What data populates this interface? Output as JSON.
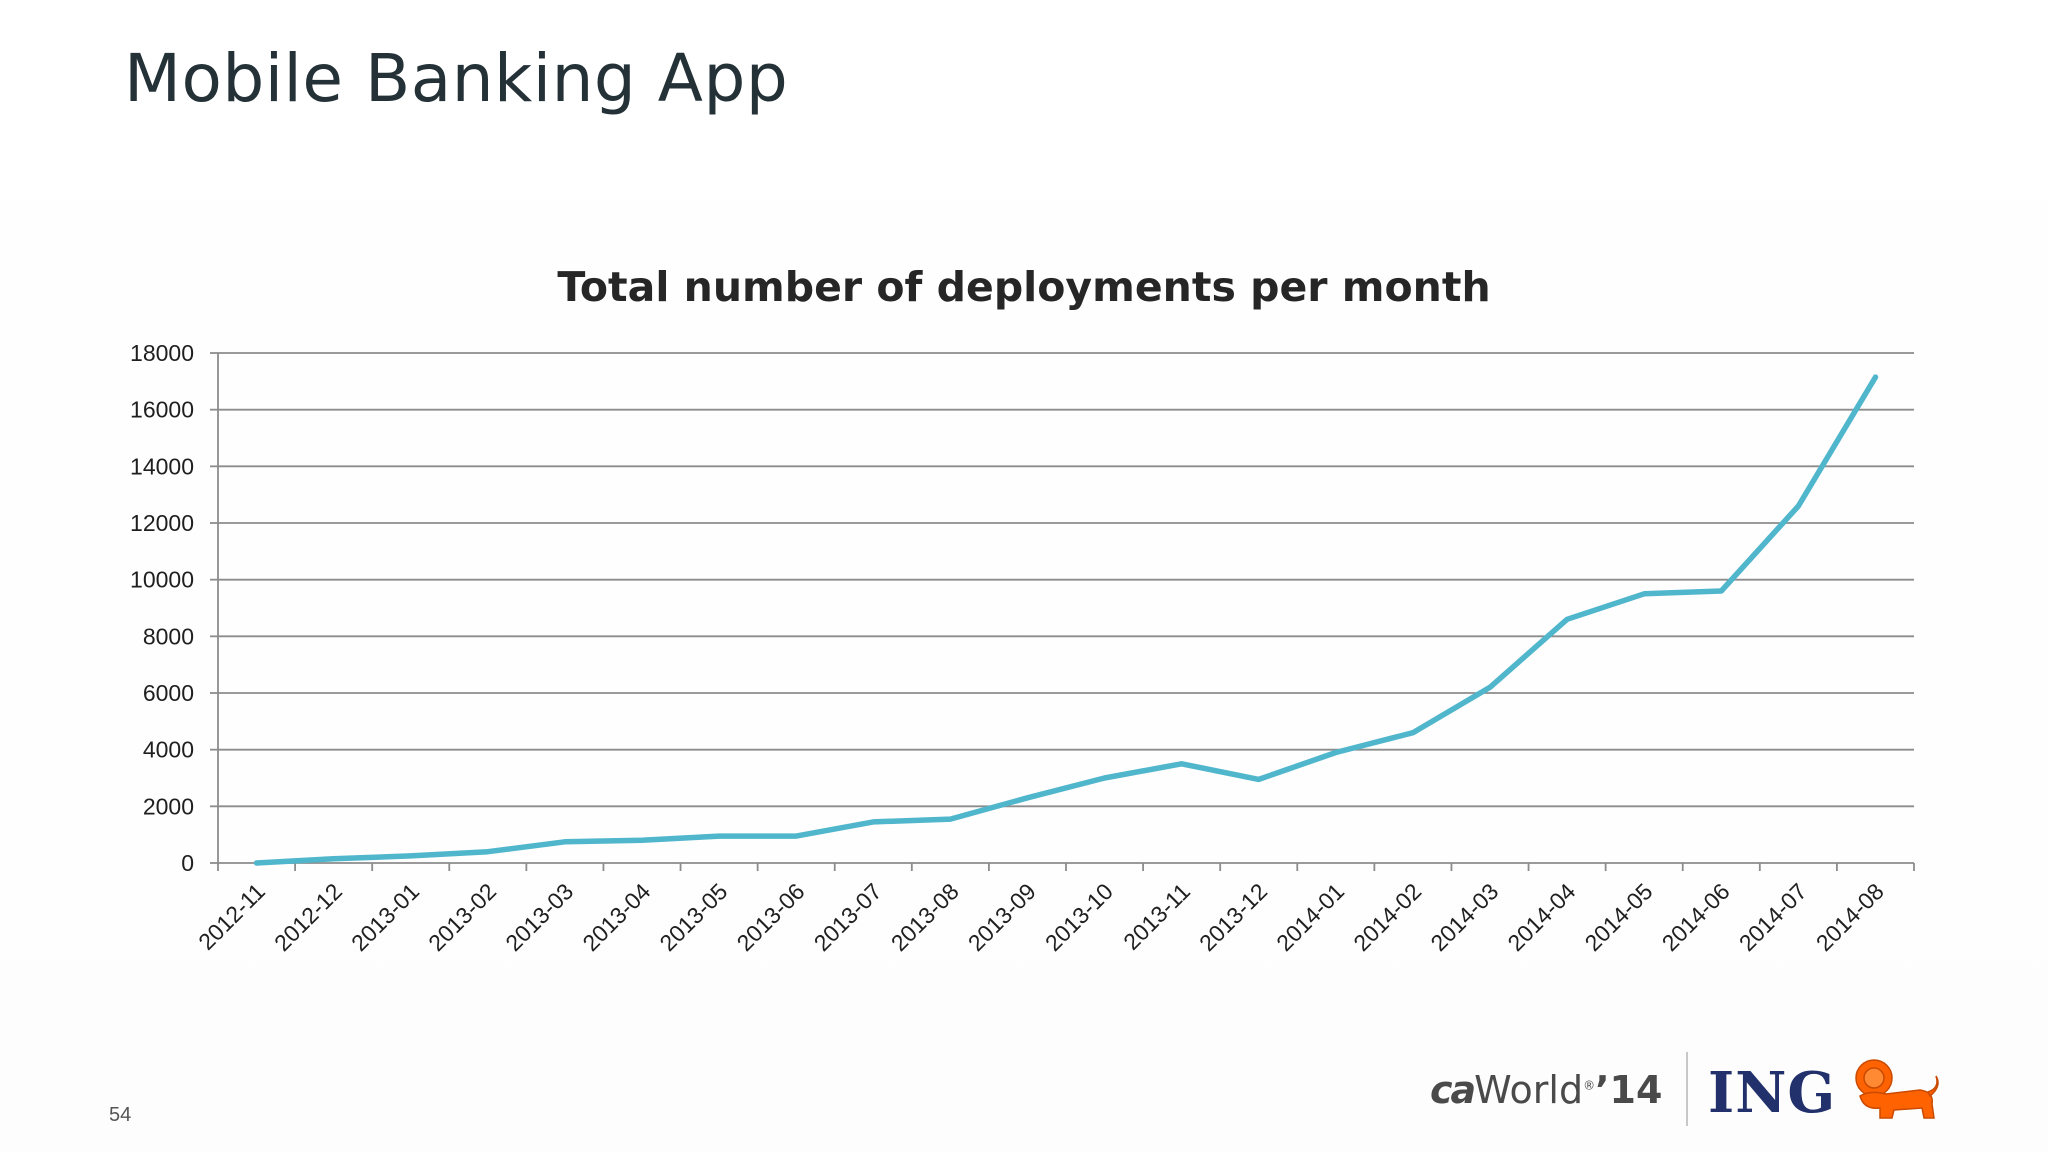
{
  "slide": {
    "title": "Mobile Banking App",
    "page_number": "54"
  },
  "footer": {
    "ca_logo": {
      "ca": "ca",
      "world": "World",
      "sup": "®",
      "year": "’14"
    },
    "ing_logo": "ING",
    "lion_icon": "lion-icon"
  },
  "colors": {
    "series": "#4fb6cc",
    "gridline": "#8c8c8c",
    "title": "#243238",
    "ing_blue": "#22306b",
    "lion_orange": "#ff6200"
  },
  "chart_data": {
    "type": "line",
    "title": "Total number of deployments per month",
    "xlabel": "",
    "ylabel": "",
    "ylim": [
      0,
      18000
    ],
    "yticks": [
      "0",
      "2000",
      "4000",
      "6000",
      "8000",
      "10000",
      "12000",
      "14000",
      "16000",
      "18000"
    ],
    "grid": true,
    "categories": [
      "2012-11",
      "2012-12",
      "2013-01",
      "2013-02",
      "2013-03",
      "2013-04",
      "2013-05",
      "2013-06",
      "2013-07",
      "2013-08",
      "2013-09",
      "2013-10",
      "2013-11",
      "2013-12",
      "2014-01",
      "2014-02",
      "2014-03",
      "2014-04",
      "2014-05",
      "2014-06",
      "2014-07",
      "2014-08"
    ],
    "series": [
      {
        "values": [
          0,
          150,
          250,
          400,
          750,
          800,
          950,
          950,
          1450,
          1550,
          2300,
          3000,
          3500,
          2950,
          3900,
          4600,
          6200,
          8600,
          9500,
          9600,
          12600,
          17150
        ]
      }
    ]
  }
}
